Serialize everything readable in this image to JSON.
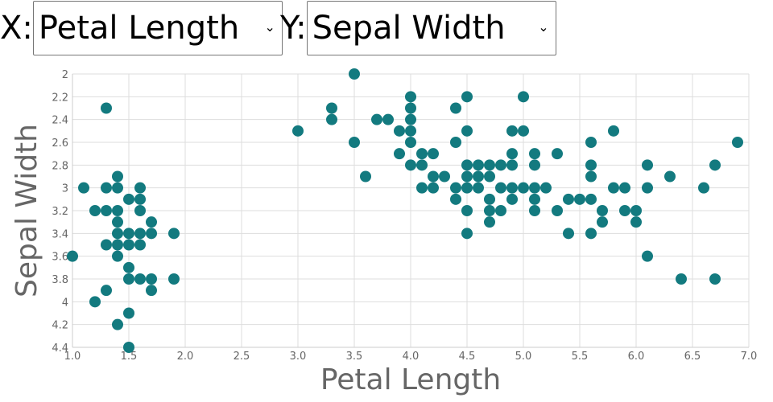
{
  "controls": {
    "x_label": "X:",
    "x_selected": "Petal Length",
    "y_label": "Y:",
    "y_selected": "Sepal Width"
  },
  "chart_data": {
    "type": "scatter",
    "xlabel": "Petal Length",
    "ylabel": "Sepal Width",
    "xlim": [
      1.0,
      7.0
    ],
    "ylim": [
      2,
      4.4
    ],
    "y_inverted": true,
    "grid": true,
    "point_color": "#137a7f",
    "xticks": [
      "1.0",
      "1.5",
      "2.0",
      "2.5",
      "3.0",
      "3.5",
      "4.0",
      "4.5",
      "5.0",
      "5.5",
      "6.0",
      "6.5",
      "7.0"
    ],
    "yticks": [
      "2",
      "2.2",
      "2.4",
      "2.6",
      "2.8",
      "3",
      "3.2",
      "3.4",
      "3.6",
      "3.8",
      "4",
      "4.2",
      "4.4"
    ],
    "points": [
      [
        1.4,
        2.9
      ],
      [
        1.1,
        3.0
      ],
      [
        1.3,
        3.0
      ],
      [
        1.4,
        3.0
      ],
      [
        1.6,
        3.0
      ],
      [
        1.5,
        3.1
      ],
      [
        1.6,
        3.1
      ],
      [
        1.2,
        3.2
      ],
      [
        1.3,
        3.2
      ],
      [
        1.4,
        3.2
      ],
      [
        1.6,
        3.2
      ],
      [
        1.4,
        3.3
      ],
      [
        1.7,
        3.3
      ],
      [
        1.4,
        3.4
      ],
      [
        1.5,
        3.4
      ],
      [
        1.6,
        3.4
      ],
      [
        1.7,
        3.4
      ],
      [
        1.9,
        3.4
      ],
      [
        1.3,
        3.5
      ],
      [
        1.4,
        3.5
      ],
      [
        1.5,
        3.5
      ],
      [
        1.6,
        3.5
      ],
      [
        1.0,
        3.6
      ],
      [
        1.4,
        3.6
      ],
      [
        1.5,
        3.7
      ],
      [
        1.5,
        3.8
      ],
      [
        1.6,
        3.8
      ],
      [
        1.7,
        3.8
      ],
      [
        1.9,
        3.8
      ],
      [
        1.3,
        3.9
      ],
      [
        1.7,
        3.9
      ],
      [
        1.2,
        4.0
      ],
      [
        1.5,
        4.1
      ],
      [
        1.4,
        4.2
      ],
      [
        1.5,
        4.4
      ],
      [
        1.3,
        2.3
      ],
      [
        3.5,
        2.0
      ],
      [
        4.0,
        2.2
      ],
      [
        4.5,
        2.2
      ],
      [
        5.0,
        2.2
      ],
      [
        3.3,
        2.3
      ],
      [
        4.0,
        2.3
      ],
      [
        4.4,
        2.3
      ],
      [
        3.3,
        2.4
      ],
      [
        3.7,
        2.4
      ],
      [
        3.8,
        2.4
      ],
      [
        4.0,
        2.4
      ],
      [
        3.0,
        2.5
      ],
      [
        3.9,
        2.5
      ],
      [
        4.0,
        2.5
      ],
      [
        4.5,
        2.5
      ],
      [
        4.9,
        2.5
      ],
      [
        5.0,
        2.5
      ],
      [
        5.8,
        2.5
      ],
      [
        3.5,
        2.6
      ],
      [
        4.0,
        2.6
      ],
      [
        4.4,
        2.6
      ],
      [
        5.6,
        2.6
      ],
      [
        6.9,
        2.6
      ],
      [
        3.9,
        2.7
      ],
      [
        4.1,
        2.7
      ],
      [
        4.2,
        2.7
      ],
      [
        4.9,
        2.7
      ],
      [
        5.1,
        2.7
      ],
      [
        5.3,
        2.7
      ],
      [
        4.0,
        2.8
      ],
      [
        4.1,
        2.8
      ],
      [
        4.5,
        2.8
      ],
      [
        4.6,
        2.8
      ],
      [
        4.7,
        2.8
      ],
      [
        4.8,
        2.8
      ],
      [
        4.9,
        2.8
      ],
      [
        5.1,
        2.8
      ],
      [
        5.6,
        2.8
      ],
      [
        6.1,
        2.8
      ],
      [
        6.7,
        2.8
      ],
      [
        3.6,
        2.9
      ],
      [
        4.2,
        2.9
      ],
      [
        4.3,
        2.9
      ],
      [
        4.5,
        2.9
      ],
      [
        4.6,
        2.9
      ],
      [
        4.7,
        2.9
      ],
      [
        5.6,
        2.9
      ],
      [
        6.3,
        2.9
      ],
      [
        4.1,
        3.0
      ],
      [
        4.2,
        3.0
      ],
      [
        4.4,
        3.0
      ],
      [
        4.5,
        3.0
      ],
      [
        4.6,
        3.0
      ],
      [
        4.8,
        3.0
      ],
      [
        4.9,
        3.0
      ],
      [
        5.0,
        3.0
      ],
      [
        5.1,
        3.0
      ],
      [
        5.2,
        3.0
      ],
      [
        5.8,
        3.0
      ],
      [
        5.9,
        3.0
      ],
      [
        6.1,
        3.0
      ],
      [
        6.6,
        3.0
      ],
      [
        4.4,
        3.1
      ],
      [
        4.7,
        3.1
      ],
      [
        4.9,
        3.1
      ],
      [
        5.1,
        3.1
      ],
      [
        5.4,
        3.1
      ],
      [
        5.5,
        3.1
      ],
      [
        5.6,
        3.1
      ],
      [
        4.5,
        3.2
      ],
      [
        4.7,
        3.2
      ],
      [
        4.8,
        3.2
      ],
      [
        5.1,
        3.2
      ],
      [
        5.3,
        3.2
      ],
      [
        5.7,
        3.2
      ],
      [
        5.9,
        3.2
      ],
      [
        6.0,
        3.2
      ],
      [
        4.7,
        3.3
      ],
      [
        5.7,
        3.3
      ],
      [
        6.0,
        3.3
      ],
      [
        4.5,
        3.4
      ],
      [
        5.4,
        3.4
      ],
      [
        5.6,
        3.4
      ],
      [
        6.1,
        3.6
      ],
      [
        6.4,
        3.8
      ],
      [
        6.7,
        3.8
      ]
    ]
  }
}
